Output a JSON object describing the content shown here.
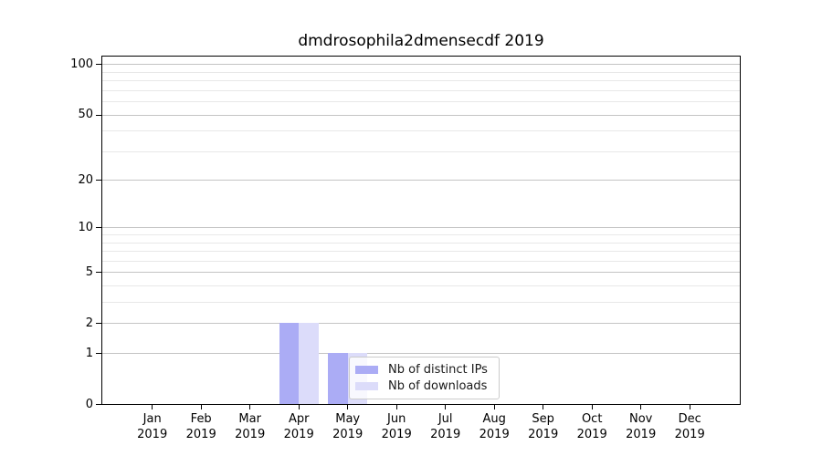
{
  "chart_data": {
    "type": "bar",
    "title": "dmdrosophila2dmensecdf 2019",
    "months": [
      "Jan",
      "Feb",
      "Mar",
      "Apr",
      "May",
      "Jun",
      "Jul",
      "Aug",
      "Sep",
      "Oct",
      "Nov",
      "Dec"
    ],
    "year": "2019",
    "categories": [
      "Jan 2019",
      "Feb 2019",
      "Mar 2019",
      "Apr 2019",
      "May 2019",
      "Jun 2019",
      "Jul 2019",
      "Aug 2019",
      "Sep 2019",
      "Oct 2019",
      "Nov 2019",
      "Dec 2019"
    ],
    "series": [
      {
        "name": "Nb of distinct IPs",
        "color": "#abacf5",
        "values": [
          0,
          0,
          0,
          2,
          1,
          0,
          0,
          0,
          0,
          0,
          0,
          0
        ]
      },
      {
        "name": "Nb of downloads",
        "color": "#dcdcfa",
        "values": [
          0,
          0,
          0,
          2,
          1,
          0,
          0,
          0,
          0,
          0,
          0,
          0
        ]
      }
    ],
    "y_axis": {
      "scale": "log1p",
      "ticks": [
        0,
        1,
        2,
        5,
        10,
        20,
        50,
        100
      ],
      "minor_ticks": [
        3,
        4,
        6,
        7,
        8,
        9,
        30,
        40,
        60,
        70,
        80,
        90
      ],
      "ylim": [
        0,
        112
      ]
    },
    "grid": {
      "major_color": "#c4c4c4",
      "minor_color": "#e8e8e8"
    },
    "legend": {
      "position": "inside-bottom-center",
      "entries": [
        "Nb of distinct IPs",
        "Nb of downloads"
      ]
    }
  }
}
